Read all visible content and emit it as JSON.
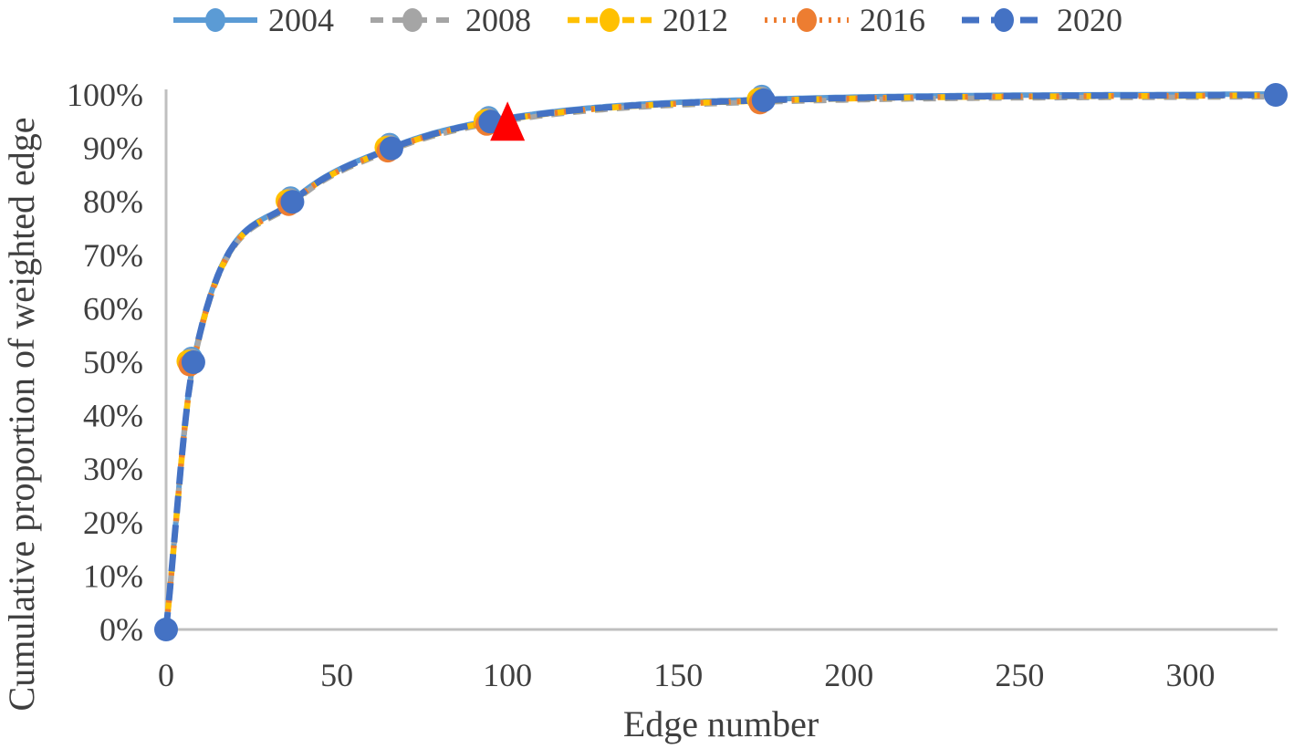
{
  "chart_data": {
    "type": "line",
    "title": "",
    "xlabel": "Edge number",
    "ylabel": "Cumulative proportion of weighted edge",
    "xlim": [
      0,
      325
    ],
    "ylim": [
      0,
      100
    ],
    "grid": false,
    "legend_position": "top-center",
    "background": "#FFFFFF",
    "axis_color": "#BFBFBF",
    "text_color": "#3F3F3F",
    "x_ticks": [
      0,
      50,
      100,
      150,
      200,
      250,
      300
    ],
    "x_tick_labels": [
      "0",
      "50",
      "100",
      "150",
      "200",
      "250",
      "300"
    ],
    "y_ticks": [
      0,
      10,
      20,
      30,
      40,
      50,
      60,
      70,
      80,
      90,
      100
    ],
    "y_tick_labels": [
      "0%",
      "10%",
      "20%",
      "30%",
      "40%",
      "50%",
      "60%",
      "70%",
      "80%",
      "90%",
      "100%"
    ],
    "x": [
      0,
      8,
      37,
      66,
      95,
      175,
      325
    ],
    "series": [
      {
        "name": "2004",
        "color": "#5B9BD5",
        "line_style": "solid",
        "marker": "circle",
        "y": [
          0,
          50,
          80,
          90,
          95,
          99,
          100
        ]
      },
      {
        "name": "2008",
        "color": "#A5A5A5",
        "line_style": "dashed",
        "marker": "circle",
        "y": [
          0,
          50,
          80,
          90,
          95,
          99,
          100
        ]
      },
      {
        "name": "2012",
        "color": "#FFC000",
        "line_style": "dashed",
        "marker": "circle",
        "y": [
          0,
          50,
          80,
          90,
          95,
          99,
          100
        ]
      },
      {
        "name": "2016",
        "color": "#ED7D31",
        "line_style": "dotted",
        "marker": "circle",
        "y": [
          0,
          50,
          80,
          90,
          95,
          99,
          100
        ]
      },
      {
        "name": "2020",
        "color": "#4472C4",
        "line_style": "dashed",
        "marker": "circle",
        "y": [
          0,
          50,
          80,
          90,
          95,
          99,
          100
        ]
      }
    ],
    "annotations": [
      {
        "type": "triangle-marker",
        "color": "#FF0000",
        "x": 100,
        "y": 95
      }
    ]
  }
}
